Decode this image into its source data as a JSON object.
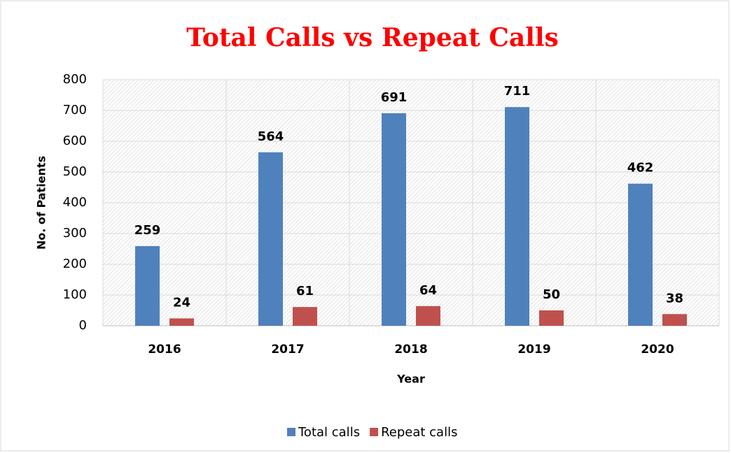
{
  "chart_data": {
    "type": "bar",
    "title": "Total Calls vs Repeat Calls",
    "title_color": "#ff0000",
    "xlabel": "Year",
    "ylabel": "No. of Patients",
    "categories": [
      "2016",
      "2017",
      "2018",
      "2019",
      "2020"
    ],
    "series": [
      {
        "name": "Total calls",
        "color": "#4f81bd",
        "values": [
          259,
          564,
          691,
          711,
          462
        ]
      },
      {
        "name": "Repeat calls",
        "color": "#c0504d",
        "values": [
          24,
          61,
          64,
          50,
          38
        ]
      }
    ],
    "ylim": [
      0,
      800
    ],
    "yticks": [
      0,
      100,
      200,
      300,
      400,
      500,
      600,
      700,
      800
    ],
    "grid": true,
    "legend": "bottom"
  }
}
